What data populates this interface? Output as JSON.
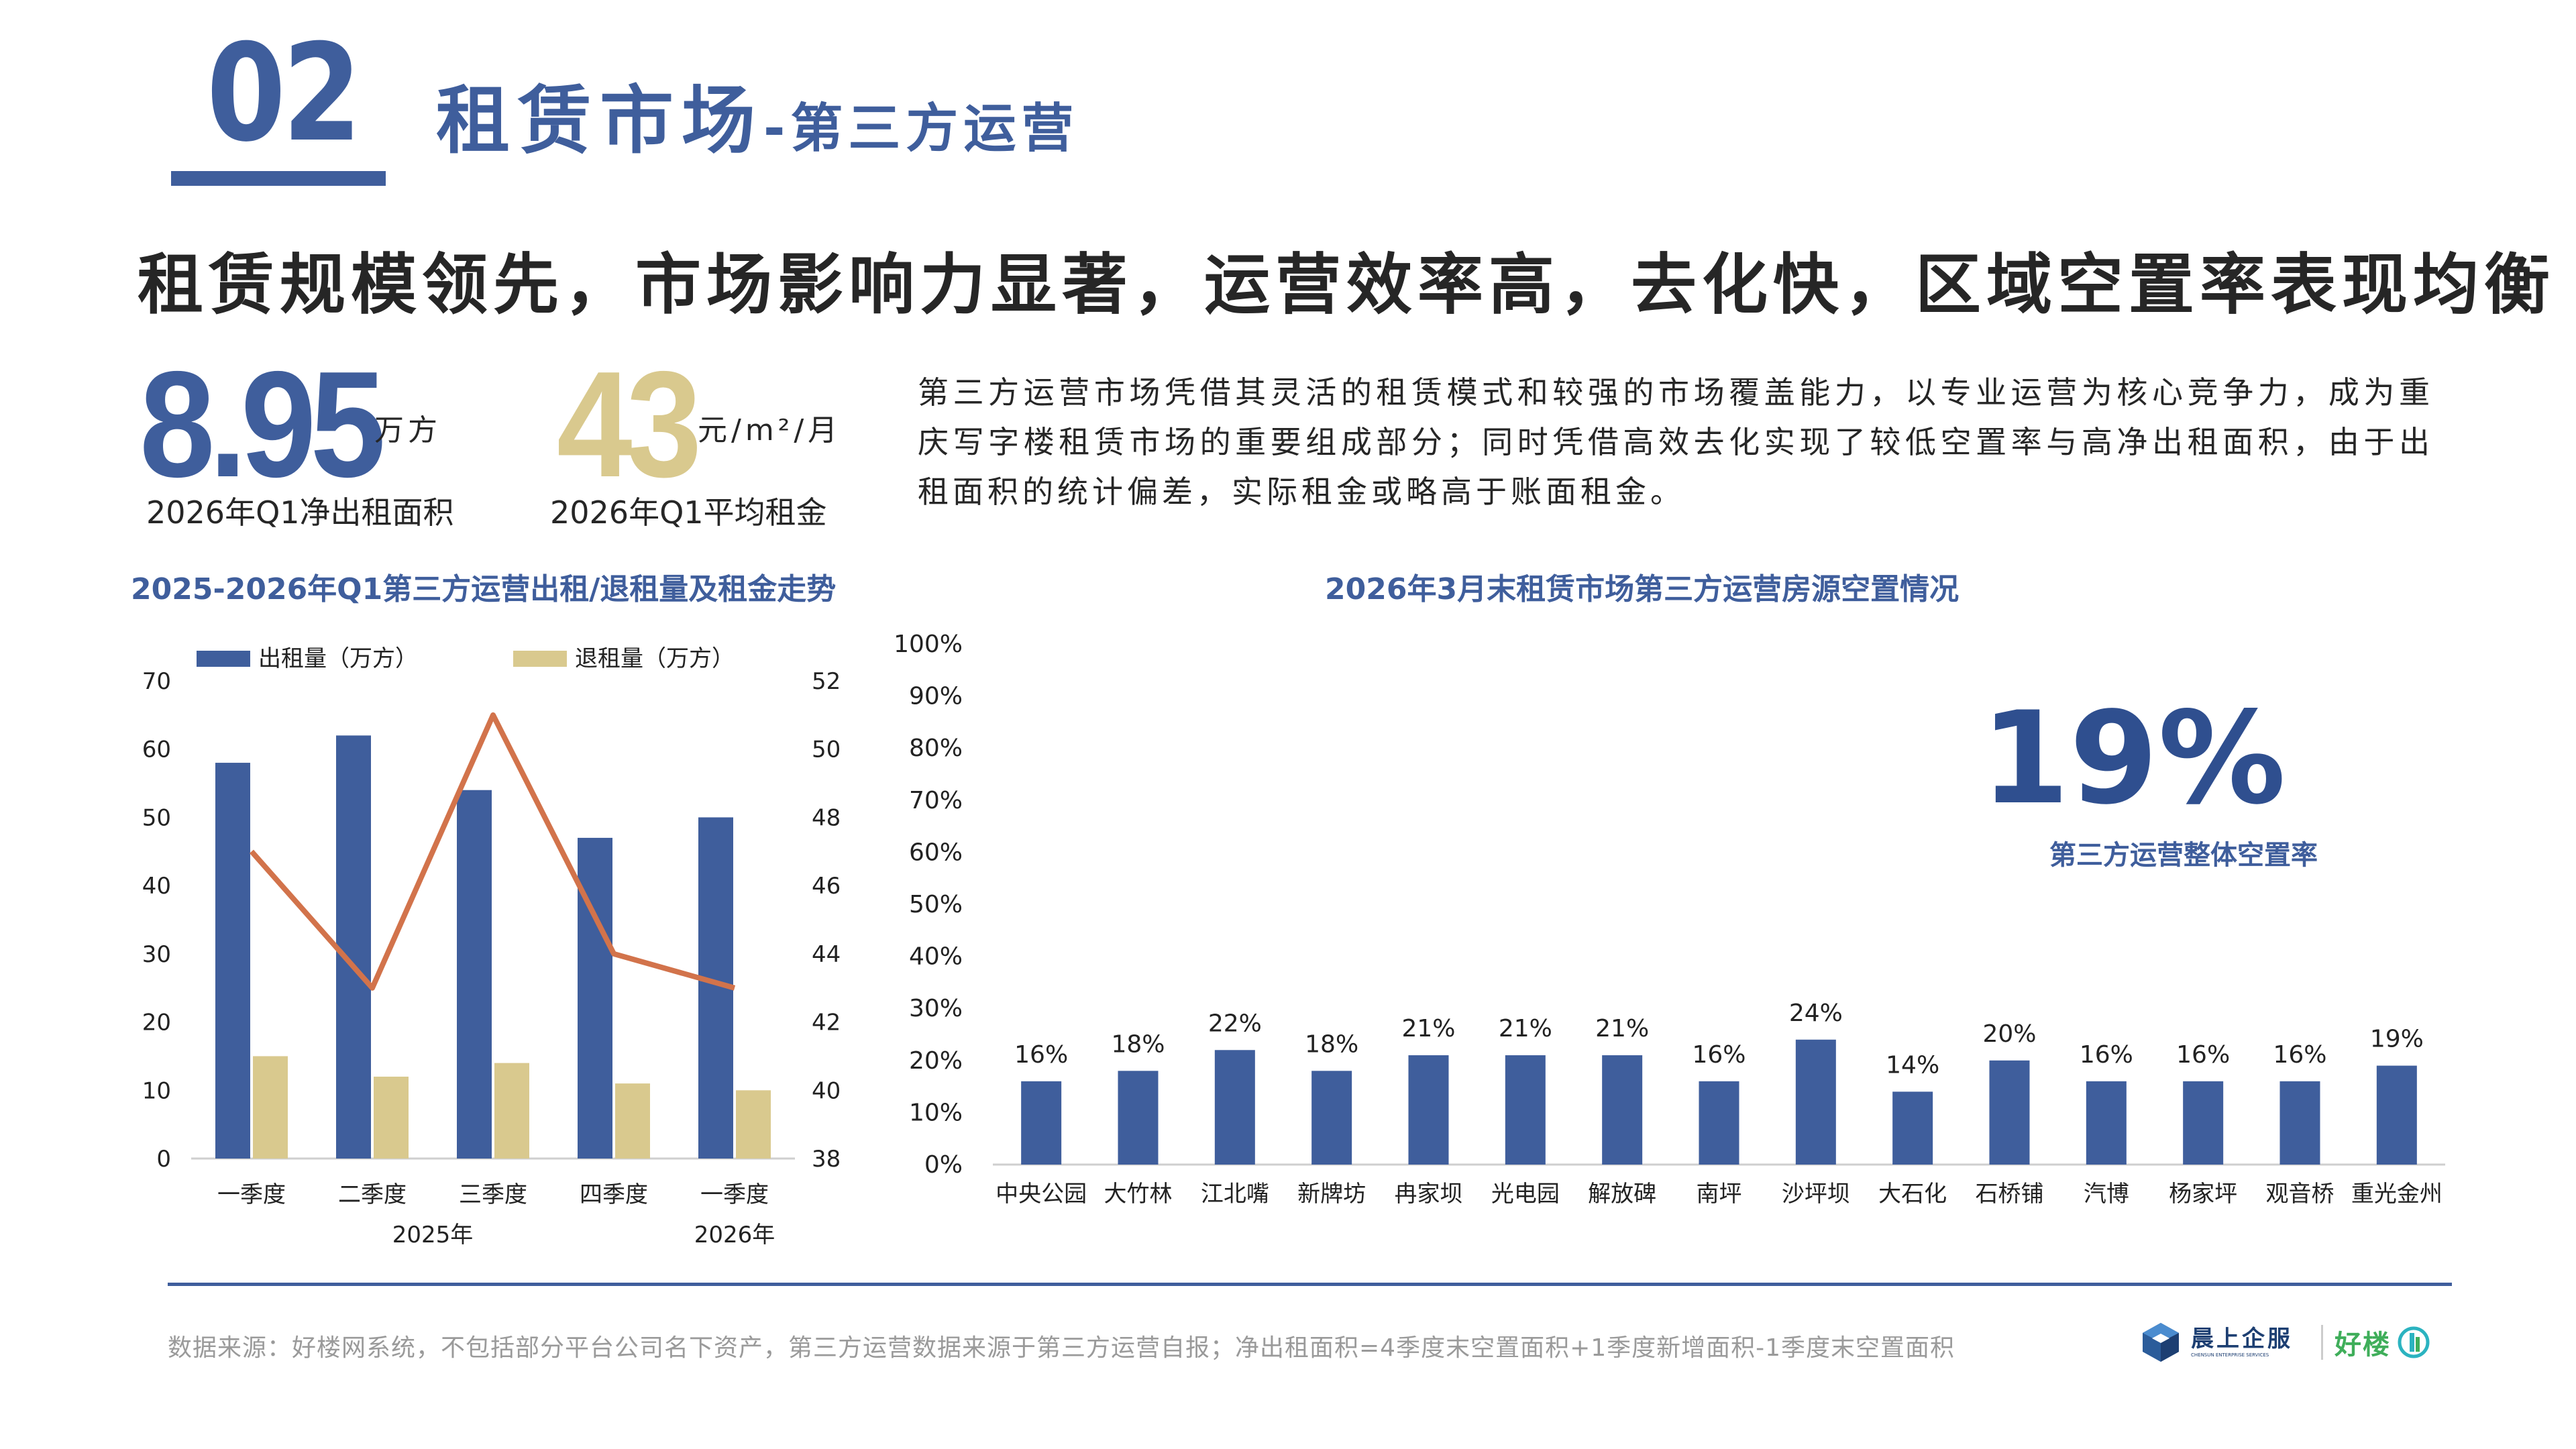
{
  "header": {
    "section_number": "02",
    "title": "租赁市场",
    "subtitle": "-第三方运营"
  },
  "headline": "租赁规模领先，市场影响力显著，运营效率高，去化快，区域空置率表现均衡",
  "kpis": [
    {
      "value": "8.95",
      "unit": "万方",
      "label": "2026年Q1净出租面积",
      "color": "#3f5e9c"
    },
    {
      "value": "43",
      "unit": "元/m²/月",
      "label": "2026年Q1平均租金",
      "color": "#d9c98e"
    }
  ],
  "description": "第三方运营市场凭借其灵活的租赁模式和较强的市场覆盖能力，以专业运营为核心竞争力，成为重庆写字楼租赁市场的重要组成部分；同时凭借高效去化实现了较低空置率与高净出租面积，由于出租面积的统计偏差，实际租金或略高于账面租金。",
  "colors": {
    "primary": "#3f5e9c",
    "gold": "#d9c98e",
    "line": "#d2734b"
  },
  "chart_data": [
    {
      "type": "bar",
      "title": "2025-2026年Q1第三方运营出租/退租量及租金走势",
      "categories": [
        "一季度",
        "二季度",
        "三季度",
        "四季度",
        "一季度"
      ],
      "groups": [
        {
          "label": "2025年"
        },
        {
          "label": "2026年"
        }
      ],
      "ylim": [
        0,
        70
      ],
      "yticks": [
        0,
        10,
        20,
        30,
        40,
        50,
        60,
        70
      ],
      "y2lim": [
        38,
        52
      ],
      "y2ticks": [
        38,
        40,
        42,
        44,
        46,
        48,
        50,
        52
      ],
      "legend": [
        "出租量（万方）",
        "退租量（万方）"
      ],
      "series": [
        {
          "name": "出租量（万方）",
          "values": [
            58,
            62,
            54,
            47,
            50
          ],
          "color": "#3f5e9c"
        },
        {
          "name": "退租量（万方）",
          "values": [
            15,
            12,
            14,
            11,
            10
          ],
          "color": "#d9c98e"
        },
        {
          "name": "租金",
          "values": [
            47,
            43,
            51,
            44,
            43
          ],
          "color": "#d2734b",
          "axis": "right",
          "type": "line"
        }
      ]
    },
    {
      "type": "bar",
      "title": "2026年3月末租赁市场第三方运营房源空置情况",
      "categories": [
        "中央公园",
        "大竹林",
        "江北嘴",
        "新牌坊",
        "冉家坝",
        "光电园",
        "解放碑",
        "南坪",
        "沙坪坝",
        "大石化",
        "石桥铺",
        "汽博",
        "杨家坪",
        "观音桥",
        "重光金州"
      ],
      "values": [
        16,
        18,
        22,
        18,
        21,
        21,
        21,
        16,
        24,
        14,
        20,
        16,
        16,
        16,
        19
      ],
      "value_labels": [
        "16%",
        "18%",
        "22%",
        "18%",
        "21%",
        "21%",
        "21%",
        "16%",
        "24%",
        "14%",
        "20%",
        "16%",
        "16%",
        "16%",
        "19%"
      ],
      "ylim": [
        0,
        100
      ],
      "ytick_labels": [
        "0%",
        "10%",
        "20%",
        "30%",
        "40%",
        "50%",
        "60%",
        "70%",
        "80%",
        "90%",
        "100%"
      ],
      "annotation": {
        "value": "19%",
        "label": "第三方运营整体空置率"
      }
    }
  ],
  "footer": {
    "note": "数据来源：好楼网系统，不包括部分平台公司名下资产，第三方运营数据来源于第三方运营自报；净出租面积=4季度末空置面积+1季度新增面积-1季度末空置面积",
    "logo1_name": "晨上企服",
    "logo1_sub": "CHENSUN ENTERPRISE SERVICES",
    "logo2_name": "好楼"
  }
}
